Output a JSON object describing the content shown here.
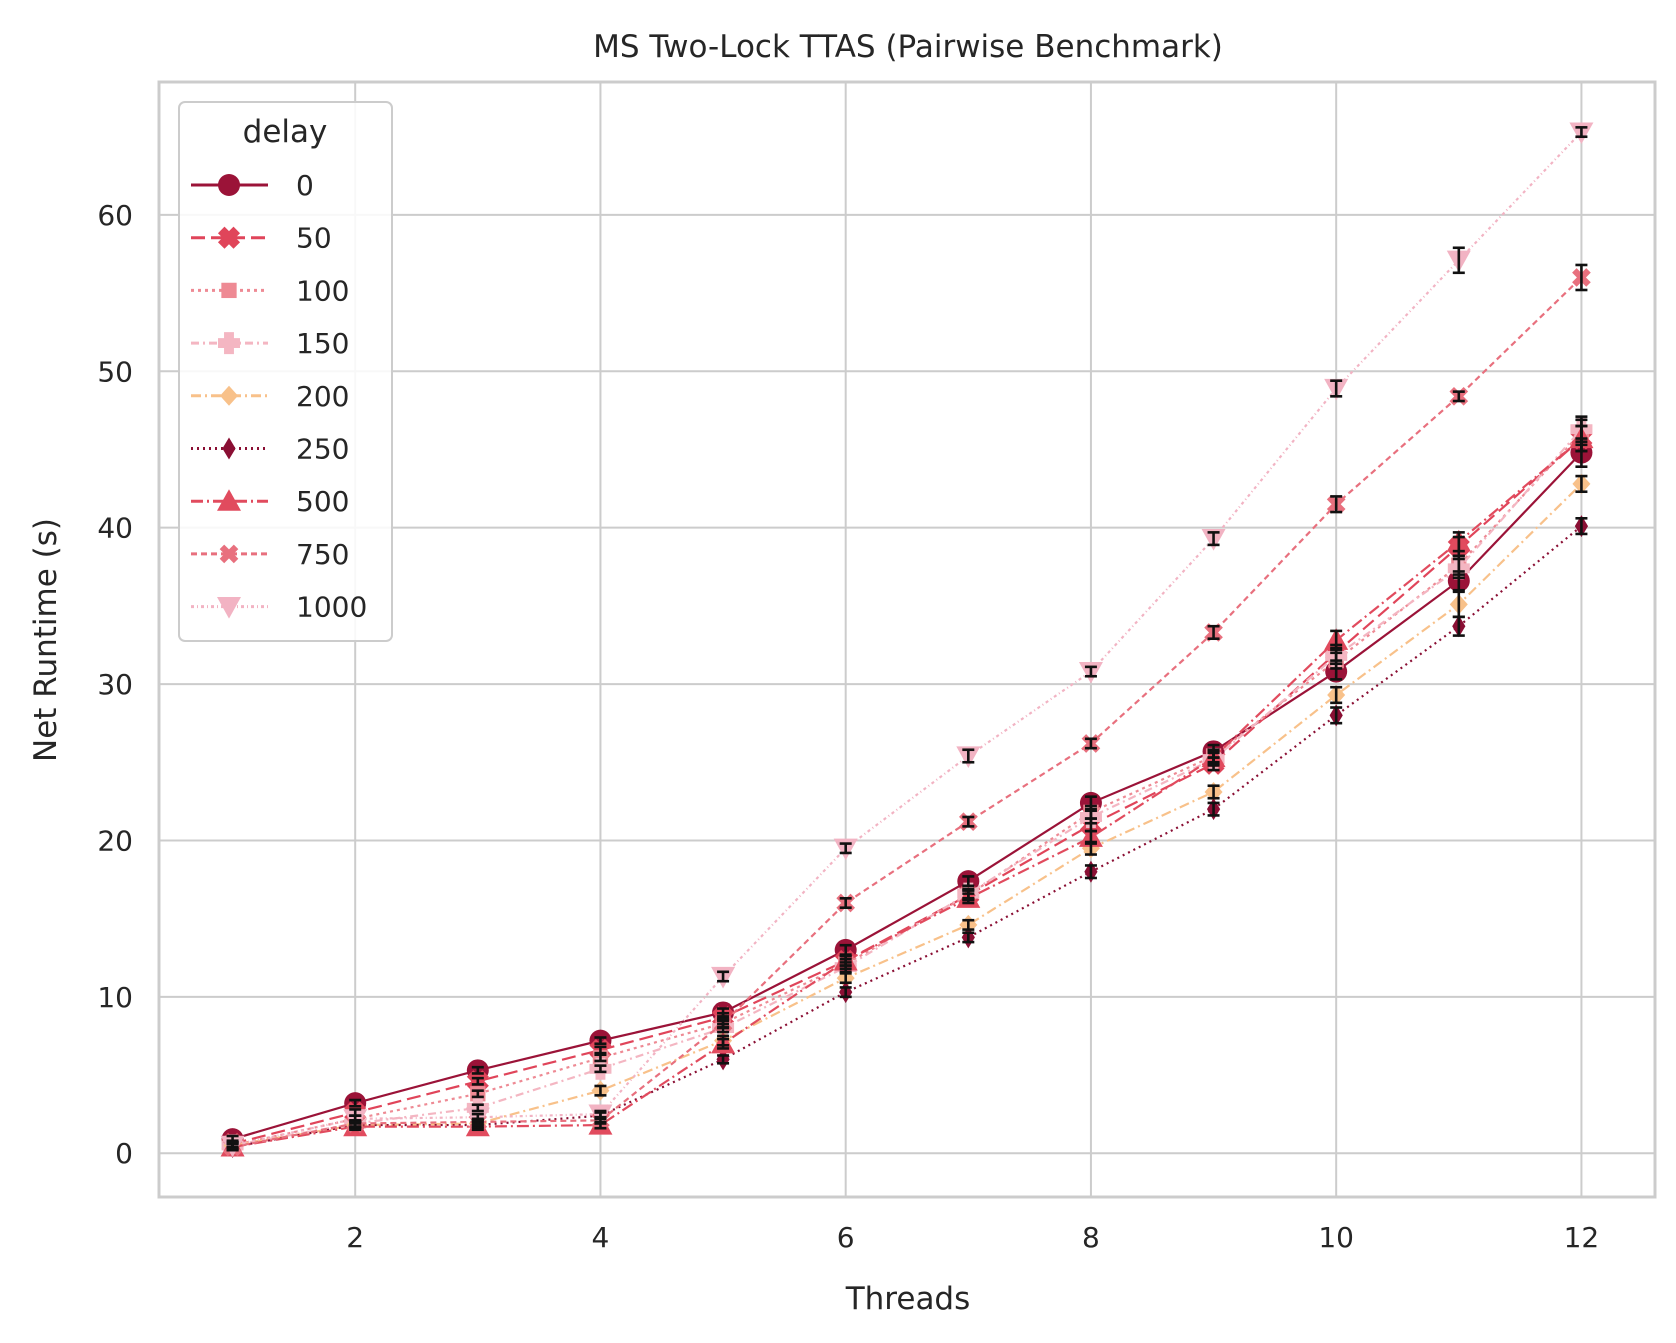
{
  "chart_data": {
    "type": "line",
    "title": "MS Two-Lock TTAS (Pairwise Benchmark)",
    "xlabel": "Threads",
    "ylabel": "Net Runtime (s)",
    "xlim": [
      0.4,
      12.6
    ],
    "ylim": [
      -2.8,
      68.5
    ],
    "xticks": [
      2,
      4,
      6,
      8,
      10,
      12
    ],
    "yticks": [
      0,
      10,
      20,
      30,
      40,
      50,
      60
    ],
    "grid": true,
    "legend": {
      "title": "delay",
      "placement": "top-left"
    },
    "x": [
      1,
      2,
      3,
      4,
      5,
      6,
      7,
      8,
      9,
      10,
      11,
      12
    ],
    "series": [
      {
        "name": "0",
        "color": "#9b1338",
        "marker": "circle",
        "dash": "",
        "values": [
          0.9,
          3.2,
          5.3,
          7.2,
          9.0,
          13.0,
          17.4,
          22.4,
          25.7,
          30.8,
          36.6,
          44.8
        ],
        "err": [
          0.2,
          0.2,
          0.2,
          0.2,
          0.25,
          0.3,
          0.3,
          0.4,
          0.4,
          0.5,
          0.6,
          0.9
        ]
      },
      {
        "name": "50",
        "color": "#e0455a",
        "marker": "x",
        "dash": "14,6",
        "values": [
          0.6,
          2.6,
          4.6,
          6.6,
          8.7,
          12.3,
          16.5,
          21.0,
          24.9,
          32.0,
          38.8,
          45.7
        ],
        "err": [
          0.2,
          0.2,
          0.2,
          0.2,
          0.25,
          0.3,
          0.3,
          0.4,
          0.4,
          0.5,
          0.6,
          0.8
        ]
      },
      {
        "name": "100",
        "color": "#ee8a94",
        "marker": "square",
        "dash": "3,4",
        "values": [
          0.5,
          2.2,
          3.8,
          6.1,
          8.3,
          12.1,
          16.5,
          21.8,
          25.4,
          31.5,
          37.6,
          46.1
        ],
        "err": [
          0.2,
          0.2,
          0.2,
          0.2,
          0.25,
          0.3,
          0.3,
          0.4,
          0.4,
          0.5,
          0.6,
          0.8
        ]
      },
      {
        "name": "150",
        "color": "#f4b6c2",
        "marker": "plus",
        "dash": "8,4,2,4",
        "values": [
          0.5,
          1.9,
          2.9,
          5.4,
          8.0,
          11.9,
          16.6,
          21.5,
          25.2,
          31.8,
          37.4,
          46.3
        ],
        "err": [
          0.2,
          0.2,
          0.2,
          0.2,
          0.25,
          0.3,
          0.3,
          0.4,
          0.4,
          0.5,
          0.6,
          0.8
        ]
      },
      {
        "name": "200",
        "color": "#f8c18a",
        "marker": "diamond",
        "dash": "10,4,2,4",
        "values": [
          0.5,
          1.8,
          1.9,
          4.0,
          7.2,
          11.2,
          14.6,
          19.5,
          23.1,
          29.3,
          35.1,
          42.8
        ],
        "err": [
          0.2,
          0.2,
          0.2,
          0.3,
          0.3,
          0.3,
          0.3,
          0.4,
          0.4,
          0.5,
          0.8,
          0.5
        ]
      },
      {
        "name": "250",
        "color": "#8a0f34",
        "marker": "thin-diamond",
        "dash": "2,4",
        "values": [
          0.4,
          1.8,
          1.8,
          2.4,
          6.0,
          10.3,
          13.8,
          18.0,
          22.0,
          28.0,
          33.7,
          40.1
        ],
        "err": [
          0.2,
          0.2,
          0.2,
          0.2,
          0.25,
          0.3,
          0.3,
          0.4,
          0.4,
          0.5,
          0.6,
          0.5
        ]
      },
      {
        "name": "500",
        "color": "#e14b5e",
        "marker": "triangle-up",
        "dash": "12,4,2,4",
        "values": [
          0.4,
          1.7,
          1.7,
          1.8,
          7.0,
          12.3,
          16.3,
          20.2,
          25.3,
          32.8,
          39.1,
          45.7
        ],
        "err": [
          0.2,
          0.2,
          0.2,
          0.2,
          0.3,
          0.3,
          0.3,
          0.4,
          0.4,
          0.6,
          0.6,
          0.8
        ]
      },
      {
        "name": "750",
        "color": "#e8707e",
        "marker": "x-thin",
        "dash": "6,4",
        "values": [
          0.4,
          1.9,
          2.0,
          2.1,
          8.3,
          16.0,
          21.2,
          26.2,
          33.3,
          41.5,
          48.4,
          56.0
        ],
        "err": [
          0.2,
          0.2,
          0.2,
          0.2,
          0.3,
          0.3,
          0.3,
          0.3,
          0.4,
          0.5,
          0.3,
          0.8
        ]
      },
      {
        "name": "1000",
        "color": "#f2b3c3",
        "marker": "triangle-down",
        "dash": "3,3,1,3",
        "values": [
          0.5,
          2.2,
          2.3,
          2.5,
          11.3,
          19.5,
          25.4,
          30.8,
          39.3,
          48.9,
          57.1,
          65.3
        ],
        "err": [
          0.2,
          0.2,
          0.2,
          0.2,
          0.3,
          0.3,
          0.4,
          0.3,
          0.4,
          0.5,
          0.8,
          0.3
        ]
      }
    ]
  }
}
